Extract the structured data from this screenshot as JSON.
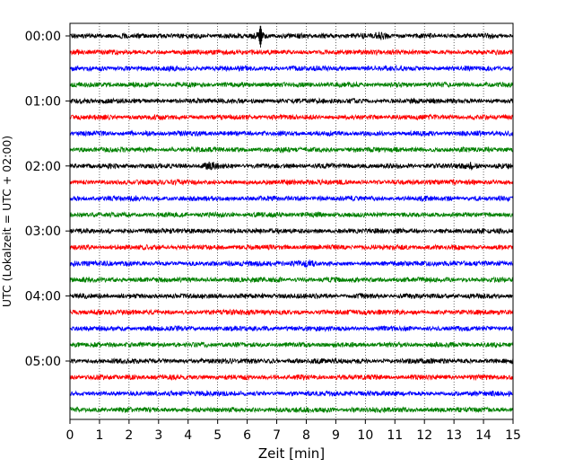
{
  "chart_data": {
    "type": "line",
    "title": "",
    "xlabel": "Zeit  [min]",
    "ylabel": "UTC (Lokalzeit = UTC + 02:00)",
    "xlim": [
      0,
      15
    ],
    "x_ticks": [
      "0",
      "1",
      "2",
      "3",
      "4",
      "5",
      "6",
      "7",
      "8",
      "9",
      "10",
      "11",
      "12",
      "13",
      "14",
      "15"
    ],
    "y_tick_labels": [
      "00:00",
      "01:00",
      "02:00",
      "03:00",
      "04:00",
      "05:00"
    ],
    "y_tick_traces": [
      0,
      4,
      8,
      12,
      16,
      20
    ],
    "vertical_grid": true,
    "vertical_grid_style": "dotted",
    "series_colors": [
      "#000000",
      "#ff0000",
      "#0000ff",
      "#008000"
    ],
    "traces_per_hour": 4,
    "minutes_per_trace": 15,
    "trace_start_utc": [
      "00:00",
      "00:15",
      "00:30",
      "00:45",
      "01:00",
      "01:15",
      "01:30",
      "01:45",
      "02:00",
      "02:15",
      "02:30",
      "02:45",
      "03:00",
      "03:15",
      "03:30",
      "03:45",
      "04:00",
      "04:15",
      "04:30",
      "04:45",
      "05:00",
      "05:15",
      "05:30",
      "05:45"
    ],
    "notable_events": [
      {
        "trace_start_utc": "00:00",
        "minute": 6.45,
        "description": "large spike"
      },
      {
        "trace_start_utc": "00:00",
        "minute": 10.5,
        "description": "burst"
      },
      {
        "trace_start_utc": "02:00",
        "minute": 4.7,
        "description": "burst"
      },
      {
        "trace_start_utc": "02:00",
        "minute": 13.6,
        "description": "burst"
      },
      {
        "trace_start_utc": "03:30",
        "minute": 8.0,
        "description": "burst"
      }
    ]
  }
}
